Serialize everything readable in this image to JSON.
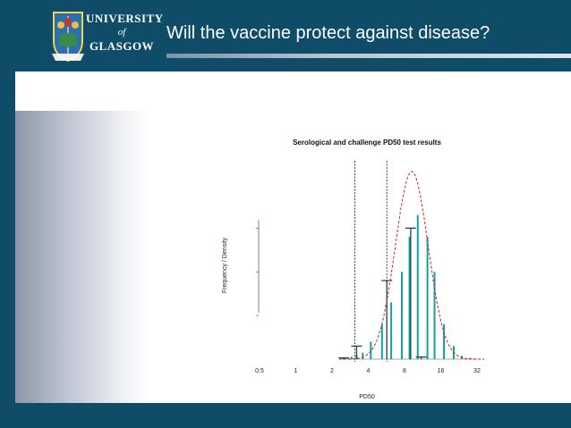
{
  "slide": {
    "title": "Will the vaccine protect against disease?"
  },
  "logo": {
    "line1": "UNIVERSITY",
    "line2": "of",
    "line3": "GLASGOW"
  },
  "colors": {
    "background": "#0f4c68",
    "bars": "#14a39a",
    "bars_dark": "#0a5f78",
    "curve": "#c0262c"
  },
  "chart_data": {
    "type": "bar",
    "title": "Serological and challenge PD50 test results",
    "xlabel": "PD50",
    "ylabel": "Frequency / Density",
    "x_scale": "log2",
    "x_ticks": [
      "0.5",
      "1",
      "2",
      "4",
      "8",
      "16",
      "32"
    ],
    "x_tick_values": [
      0.5,
      1,
      2,
      4,
      8,
      16,
      32
    ],
    "vlines": [
      3.1,
      5.7
    ],
    "series": [
      {
        "kind": "serology_bars",
        "x": [
          2.5,
          2.9,
          3.2,
          3.6,
          4.2,
          5.2,
          6.2,
          7.6,
          8.8,
          10.3,
          12.4,
          14.2,
          17.0,
          20.5,
          24.0,
          28.0
        ],
        "values": [
          0.3,
          0.6,
          1.0,
          1.5,
          4.0,
          8.0,
          13.0,
          20.0,
          28.0,
          33.0,
          28.0,
          20.0,
          8.0,
          3.0,
          0.8,
          0.3
        ]
      },
      {
        "kind": "challenge_bars",
        "x": [
          2.5,
          3.2,
          5.7,
          9.0,
          11.0
        ],
        "values": [
          0.3,
          3.0,
          18.0,
          30.0,
          0.5
        ]
      },
      {
        "kind": "density_curve",
        "mean_log2": 3.2,
        "sd_log2": 0.45,
        "peak": 43
      }
    ],
    "ylim": [
      0,
      45
    ],
    "y_ticks": [
      0,
      10,
      20,
      30
    ]
  }
}
